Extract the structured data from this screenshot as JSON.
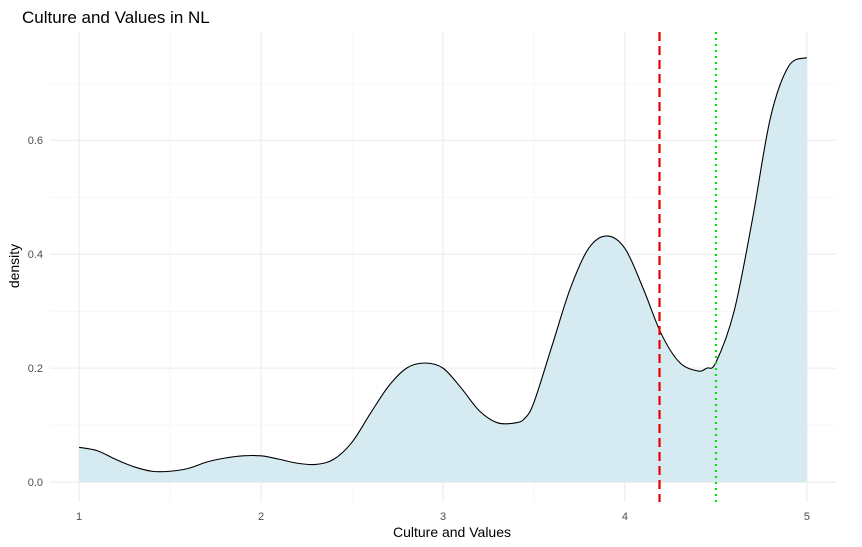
{
  "chart_data": {
    "type": "area",
    "title": "Culture and Values in NL",
    "xlabel": "Culture and Values",
    "ylabel": "density",
    "xlim": [
      0.84,
      5.16
    ],
    "ylim": [
      -0.035,
      0.79
    ],
    "x_ticks": [
      1,
      2,
      3,
      4,
      5
    ],
    "x_tick_labels": [
      "1",
      "2",
      "3",
      "4",
      "5"
    ],
    "y_ticks": [
      0.0,
      0.2,
      0.4,
      0.6
    ],
    "y_tick_labels": [
      "0.0",
      "0.2",
      "0.4",
      "0.6"
    ],
    "grid": true,
    "fill_color": "#d6eaf2",
    "line_color": "#000000",
    "series": [
      {
        "x": [
          1.0,
          1.1,
          1.2,
          1.3,
          1.4,
          1.5,
          1.6,
          1.7,
          1.8,
          1.9,
          2.0,
          2.1,
          2.2,
          2.3,
          2.4,
          2.5,
          2.6,
          2.7,
          2.8,
          2.9,
          3.0,
          3.1,
          3.2,
          3.3,
          3.4,
          3.45,
          3.5,
          3.6,
          3.7,
          3.8,
          3.9,
          4.0,
          4.1,
          4.2,
          4.3,
          4.4,
          4.45,
          4.5,
          4.6,
          4.7,
          4.8,
          4.9,
          5.0
        ],
        "y": [
          0.061,
          0.055,
          0.04,
          0.027,
          0.019,
          0.019,
          0.024,
          0.035,
          0.042,
          0.046,
          0.046,
          0.04,
          0.033,
          0.031,
          0.04,
          0.07,
          0.12,
          0.168,
          0.2,
          0.209,
          0.2,
          0.165,
          0.125,
          0.104,
          0.104,
          0.112,
          0.14,
          0.24,
          0.34,
          0.41,
          0.432,
          0.41,
          0.34,
          0.26,
          0.21,
          0.195,
          0.2,
          0.21,
          0.3,
          0.46,
          0.64,
          0.73,
          0.745
        ]
      }
    ],
    "reference_lines": [
      {
        "x": 4.19,
        "color": "#e60000",
        "style": "dashed"
      },
      {
        "x": 4.5,
        "color": "#00e600",
        "style": "dotted"
      }
    ]
  }
}
